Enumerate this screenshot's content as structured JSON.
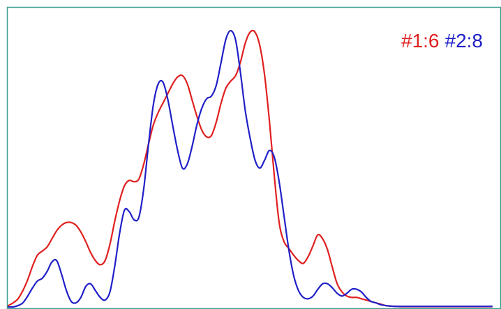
{
  "chart_data": {
    "type": "line",
    "title": "",
    "xlabel": "",
    "ylabel": "",
    "xlim": [
      0,
      100
    ],
    "ylim": [
      0,
      100
    ],
    "grid": false,
    "legend_position": "top-right",
    "frame_color": "#3a9e8f",
    "series": [
      {
        "name": "#1:6",
        "color": "#e02020",
        "x": [
          0,
          1,
          2,
          3,
          4,
          5,
          6,
          7,
          8,
          9,
          10,
          11,
          12,
          13,
          14,
          15,
          16,
          17,
          18,
          19,
          20,
          21,
          22,
          23,
          24,
          25,
          26,
          27,
          28,
          29,
          30,
          31,
          32,
          33,
          34,
          35,
          36,
          37,
          38,
          39,
          40,
          41,
          42,
          43,
          44,
          45,
          46,
          47,
          48,
          49,
          50,
          51,
          52,
          53,
          54,
          55,
          56,
          57,
          58,
          59,
          60,
          61,
          62,
          63,
          64,
          65,
          66,
          67,
          68,
          69,
          70,
          71,
          72,
          73,
          74,
          75,
          76,
          77,
          78,
          79,
          80,
          81,
          82,
          83,
          84,
          85,
          86,
          87,
          88,
          89,
          90,
          91,
          92,
          93,
          94,
          95,
          96,
          97,
          98,
          99,
          100
        ],
        "values": [
          0.5,
          1.5,
          3.0,
          6.0,
          10.0,
          15.0,
          19.0,
          20.5,
          22.0,
          25.0,
          28.0,
          30.0,
          31.0,
          31.0,
          30.0,
          27.5,
          24.0,
          20.0,
          17.0,
          15.5,
          17.0,
          23.0,
          31.5,
          39.0,
          44.5,
          46.5,
          46.0,
          47.0,
          52.5,
          60.0,
          67.0,
          71.5,
          75.0,
          78.5,
          82.0,
          84.5,
          85.0,
          82.0,
          76.0,
          70.0,
          65.0,
          62.5,
          63.0,
          68.0,
          75.0,
          80.5,
          83.0,
          85.0,
          90.0,
          97.0,
          101.0,
          101.0,
          96.0,
          85.0,
          68.0,
          48.0,
          31.0,
          24.0,
          21.5,
          19.0,
          17.0,
          16.0,
          18.5,
          22.5,
          26.5,
          25.0,
          21.0,
          14.5,
          8.5,
          5.5,
          4.0,
          3.5,
          3.5,
          3.0,
          2.5,
          2.0,
          1.5,
          1.0,
          0.5,
          0.3,
          0.2,
          0.1,
          0.1,
          0.1,
          0.1,
          0.1,
          0.1,
          0.1,
          0.1,
          0.1,
          0.1,
          0.1,
          0.1,
          0.1,
          0.1,
          0.1,
          0.1,
          0.1,
          0.1,
          0.1,
          0.1
        ]
      },
      {
        "name": "#2:8",
        "color": "#2020c8",
        "x": [
          0,
          1,
          2,
          3,
          4,
          5,
          6,
          7,
          8,
          9,
          10,
          11,
          12,
          13,
          14,
          15,
          16,
          17,
          18,
          19,
          20,
          21,
          22,
          23,
          24,
          25,
          26,
          27,
          28,
          29,
          30,
          31,
          32,
          33,
          34,
          35,
          36,
          37,
          38,
          39,
          40,
          41,
          42,
          43,
          44,
          45,
          46,
          47,
          48,
          49,
          50,
          51,
          52,
          53,
          54,
          55,
          56,
          57,
          58,
          59,
          60,
          61,
          62,
          63,
          64,
          65,
          66,
          67,
          68,
          69,
          70,
          71,
          72,
          73,
          74,
          75,
          76,
          77,
          78,
          79,
          80,
          81,
          82,
          83,
          84,
          85,
          86,
          87,
          88,
          89,
          90,
          91,
          92,
          93,
          94,
          95,
          96,
          97,
          98,
          99,
          100
        ],
        "values": [
          0.0,
          0.0,
          0.5,
          1.5,
          4.0,
          7.0,
          9.5,
          10.5,
          13.0,
          16.5,
          17.0,
          12.0,
          6.0,
          2.0,
          1.5,
          3.5,
          7.5,
          8.5,
          6.0,
          3.5,
          2.5,
          5.5,
          15.0,
          27.0,
          35.5,
          35.0,
          32.0,
          33.0,
          43.5,
          60.0,
          74.5,
          82.0,
          82.5,
          76.0,
          66.5,
          57.5,
          51.0,
          52.5,
          59.0,
          67.0,
          73.0,
          76.5,
          77.5,
          81.5,
          90.0,
          98.5,
          101.5,
          98.0,
          86.0,
          72.0,
          62.0,
          54.0,
          51.0,
          54.0,
          57.5,
          55.0,
          46.0,
          33.5,
          21.0,
          11.5,
          6.0,
          3.5,
          3.0,
          4.0,
          6.5,
          8.5,
          8.5,
          7.0,
          5.0,
          4.0,
          5.0,
          6.5,
          6.5,
          5.5,
          3.5,
          2.0,
          1.5,
          0.8,
          0.5,
          0.3,
          0.2,
          0.2,
          0.2,
          0.2,
          0.2,
          0.2,
          0.2,
          0.2,
          0.2,
          0.2,
          0.2,
          0.2,
          0.2,
          0.2,
          0.2,
          0.2,
          0.2,
          0.2,
          0.2,
          0.2,
          0.2
        ]
      }
    ]
  }
}
